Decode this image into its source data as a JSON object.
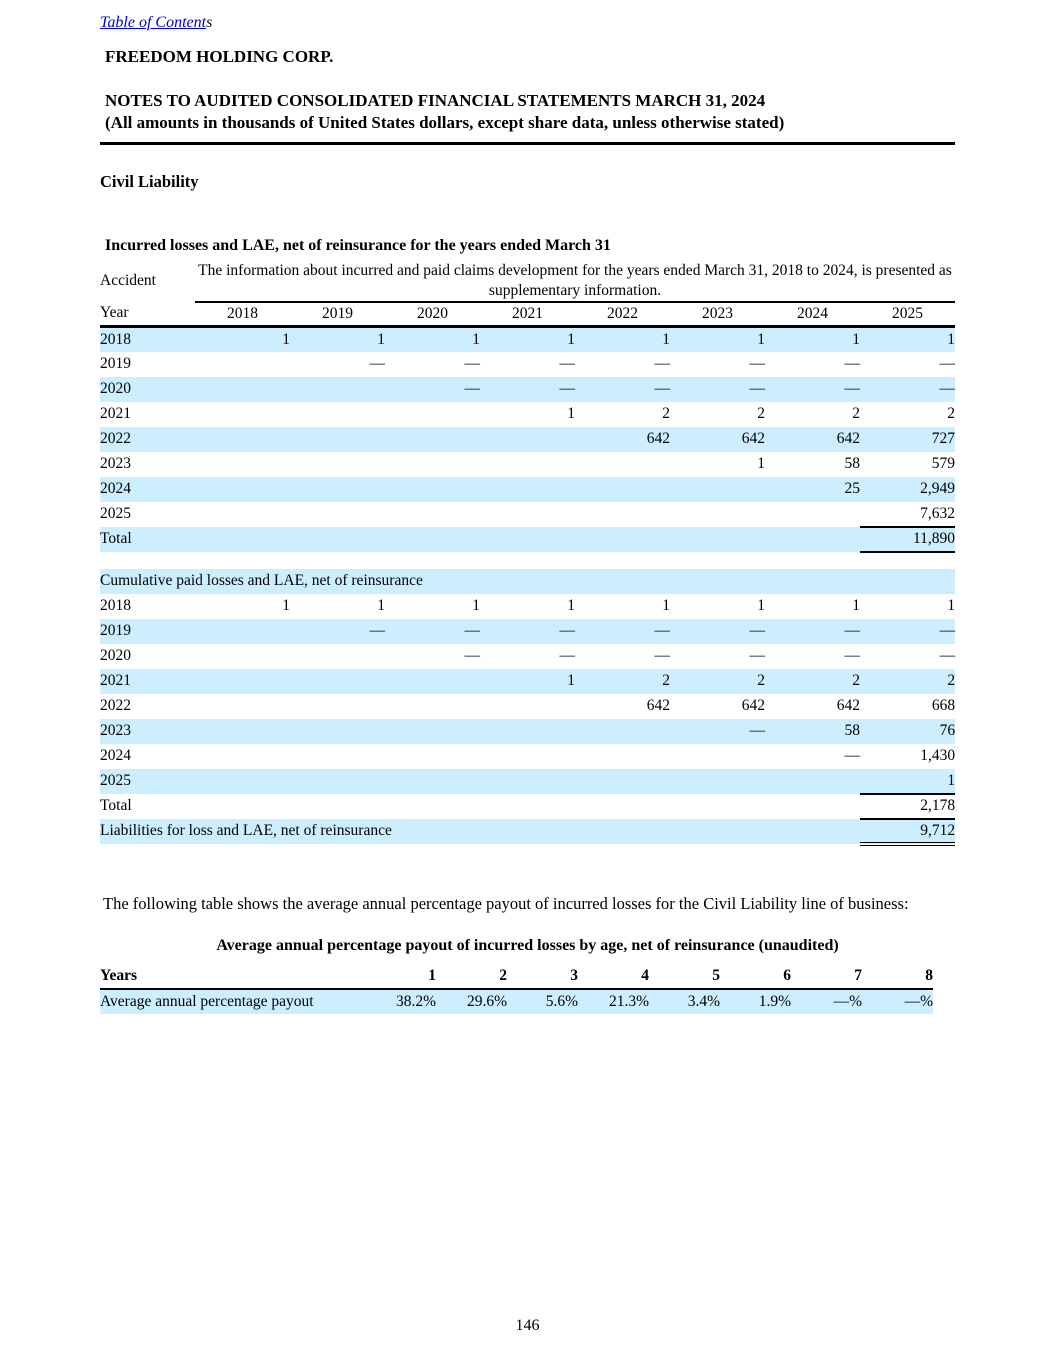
{
  "page": {
    "toc_link": "Table of Content",
    "toc_suffix": "s",
    "company": "FREEDOM HOLDING CORP.",
    "notes_title": "NOTES TO AUDITED CONSOLIDATED FINANCIAL STATEMENTS MARCH 31, 2024",
    "notes_subtitle": "(All amounts in thousands of United States dollars, except share data, unless otherwise stated)",
    "section_heading": "Civil Liability",
    "page_number": "146"
  },
  "claims": {
    "title": "Incurred losses and LAE, net of reinsurance for the years ended March 31",
    "row_header_line1": "Accident",
    "row_header_line2": "Year",
    "banner": "The information about incurred and paid claims development for the years ended March 31, 2018 to 2024, is presented as supplementary information.",
    "columns": [
      "2018",
      "2019",
      "2020",
      "2021",
      "2022",
      "2023",
      "2024",
      "2025"
    ],
    "incurred_rows": [
      {
        "label": "2018",
        "values": [
          "1",
          "1",
          "1",
          "1",
          "1",
          "1",
          "1",
          "1"
        ]
      },
      {
        "label": "2019",
        "values": [
          "",
          "—",
          "—",
          "—",
          "—",
          "—",
          "—",
          "—"
        ]
      },
      {
        "label": "2020",
        "values": [
          "",
          "",
          "—",
          "—",
          "—",
          "—",
          "—",
          "—"
        ]
      },
      {
        "label": "2021",
        "values": [
          "",
          "",
          "",
          "1",
          "2",
          "2",
          "2",
          "2"
        ]
      },
      {
        "label": "2022",
        "values": [
          "",
          "",
          "",
          "",
          "642",
          "642",
          "642",
          "727"
        ]
      },
      {
        "label": "2023",
        "values": [
          "",
          "",
          "",
          "",
          "",
          "1",
          "58",
          "579"
        ]
      },
      {
        "label": "2024",
        "values": [
          "",
          "",
          "",
          "",
          "",
          "",
          "25",
          "2,949"
        ]
      },
      {
        "label": "2025",
        "values": [
          "",
          "",
          "",
          "",
          "",
          "",
          "",
          "7,632"
        ]
      }
    ],
    "incurred_total_label": "Total",
    "incurred_total_value": "11,890",
    "paid_section_title": "Cumulative paid losses and LAE, net of reinsurance",
    "paid_rows": [
      {
        "label": "2018",
        "values": [
          "1",
          "1",
          "1",
          "1",
          "1",
          "1",
          "1",
          "1"
        ]
      },
      {
        "label": "2019",
        "values": [
          "",
          "—",
          "—",
          "—",
          "—",
          "—",
          "—",
          "—"
        ]
      },
      {
        "label": "2020",
        "values": [
          "",
          "",
          "—",
          "—",
          "—",
          "—",
          "—",
          "—"
        ]
      },
      {
        "label": "2021",
        "values": [
          "",
          "",
          "",
          "1",
          "2",
          "2",
          "2",
          "2"
        ]
      },
      {
        "label": "2022",
        "values": [
          "",
          "",
          "",
          "",
          "642",
          "642",
          "642",
          "668"
        ]
      },
      {
        "label": "2023",
        "values": [
          "",
          "",
          "",
          "",
          "",
          "—",
          "58",
          "76"
        ]
      },
      {
        "label": "2024",
        "values": [
          "",
          "",
          "",
          "",
          "",
          "",
          "—",
          "1,430"
        ]
      },
      {
        "label": "2025",
        "values": [
          "",
          "",
          "",
          "",
          "",
          "",
          "",
          "1"
        ]
      }
    ],
    "paid_total_label": "Total",
    "paid_total_value": "2,178",
    "liabilities_label": "Liabilities for loss and LAE, net of reinsurance",
    "liabilities_value": "9,712"
  },
  "payout": {
    "intro": "The following table shows the average annual percentage payout of incurred losses for the Civil Liability line of business:",
    "title": "Average annual percentage payout of incurred losses by age, net of reinsurance (unaudited)",
    "header_label": "Years",
    "columns": [
      "1",
      "2",
      "3",
      "4",
      "5",
      "6",
      "7",
      "8"
    ],
    "row_label": "Average annual percentage payout",
    "values": [
      "38.2%",
      "29.6%",
      "5.6%",
      "21.3%",
      "3.4%",
      "1.9%",
      "—%",
      "—%"
    ]
  },
  "colors": {
    "row_highlight": "#cceeff",
    "link_blue": "#0000dd",
    "rule_black": "#000000"
  }
}
